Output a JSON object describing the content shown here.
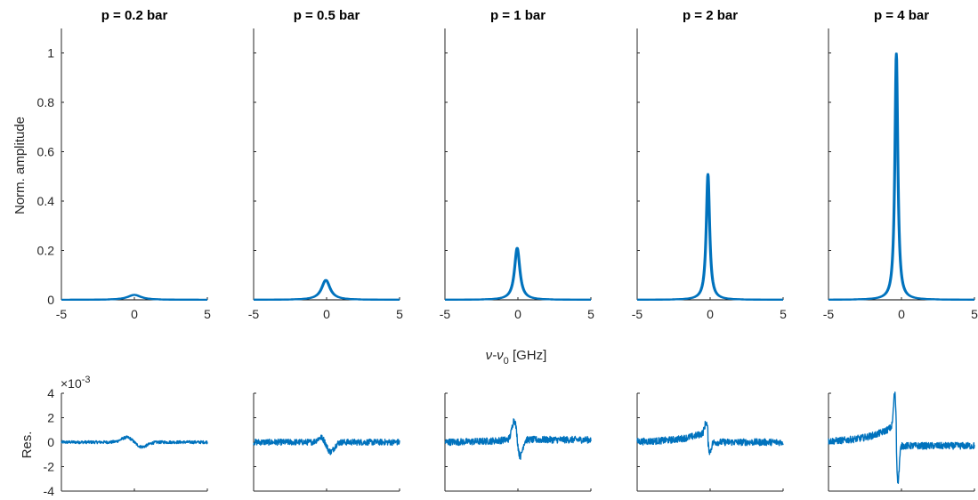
{
  "chart_data": {
    "type": "line",
    "color": "#0072BD",
    "x_label_parts": [
      "ν-ν",
      "0",
      " [GHz]"
    ],
    "top_ylabel": "Norm. amplitude",
    "bottom_ylabel": "Res.",
    "bottom_exponent_base": "×10",
    "bottom_exponent": "-3",
    "top_xlim": [
      -5,
      5
    ],
    "top_ylim": [
      0,
      1.1
    ],
    "top_xticks": [
      "-5",
      "0",
      "5"
    ],
    "top_yticks": [
      "0",
      "0.2",
      "0.4",
      "0.6",
      "0.8",
      "1"
    ],
    "bottom_ylim": [
      -4,
      4
    ],
    "bottom_yticks": [
      "-4",
      "-2",
      "0",
      "2",
      "4"
    ],
    "panels": [
      {
        "title": "p = 0.2 bar",
        "peak": 0.02,
        "center": 0.0,
        "width": 0.55,
        "res_wiggle": [
          0.4,
          -0.4
        ],
        "res_offset_left": 0.0,
        "res_offset_right": 0.0,
        "res_noise": 0.12
      },
      {
        "title": "p = 0.5 bar",
        "peak": 0.08,
        "center": -0.05,
        "width": 0.35,
        "res_wiggle": [
          0.4,
          -0.8
        ],
        "res_offset_left": 0.0,
        "res_offset_right": 0.0,
        "res_noise": 0.25
      },
      {
        "title": "p = 1 bar",
        "peak": 0.21,
        "center": -0.05,
        "width": 0.22,
        "res_wiggle": [
          1.6,
          -1.4
        ],
        "res_offset_left": 0.3,
        "res_offset_right": 0.2,
        "res_noise": 0.28
      },
      {
        "title": "p = 2 bar",
        "peak": 0.51,
        "center": -0.15,
        "width": 0.14,
        "res_wiggle": [
          0.8,
          -0.8
        ],
        "res_offset_left": 0.9,
        "res_offset_right": 0.0,
        "res_noise": 0.28
      },
      {
        "title": "p = 4 bar",
        "peak": 1.0,
        "center": -0.35,
        "width": 0.12,
        "res_wiggle": [
          2.7,
          -3.0
        ],
        "res_offset_left": 1.5,
        "res_offset_right": -0.3,
        "res_noise": 0.28
      }
    ]
  }
}
